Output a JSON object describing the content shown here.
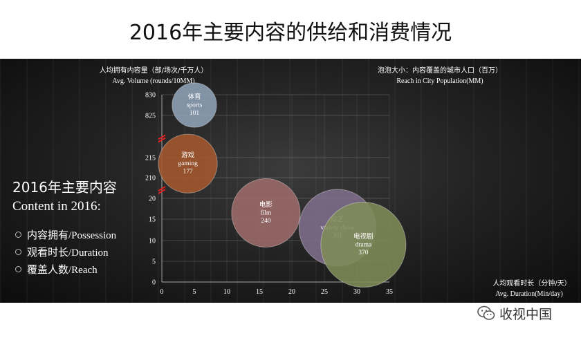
{
  "slide": {
    "title": "2016年主要内容的供给和消费情况",
    "side_title_cn": "2016年主要内容",
    "side_title_en": "Content in 2016:",
    "side_items": [
      "内容拥有/Possession",
      "观看时长/Duration",
      "覆盖人数/Reach"
    ],
    "footer_text": "收视中国",
    "footer_icon": "wechat-icon"
  },
  "chart_data": {
    "type": "bubble",
    "ylabel_cn": "人均拥有内容量（部/场次/千万人）",
    "ylabel_en": "Avg. Volume (rounds/10MM)",
    "xlabel_cn": "人均观看时长（分钟/天）",
    "xlabel_en": "Avg. Duration(Min/day)",
    "size_label_cn": "泡泡大小：内容覆盖的城市人口（百万）",
    "size_label_en": "Reach in City Population(MM)",
    "xlim": [
      0,
      35
    ],
    "x_ticks": [
      0,
      5,
      10,
      15,
      20,
      25,
      30,
      35
    ],
    "y_ticks": [
      0,
      5,
      10,
      15,
      20,
      210,
      215,
      825,
      830
    ],
    "y_axis_breaks": true,
    "points": [
      {
        "label_cn": "体育",
        "label_en": "sports",
        "x": 5,
        "y": 827.5,
        "reach": 101,
        "color": "#8fa3b8"
      },
      {
        "label_cn": "游戏",
        "label_en": "gaming",
        "x": 4,
        "y": 213.5,
        "reach": 177,
        "color": "#a4582c"
      },
      {
        "label_cn": "电影",
        "label_en": "film",
        "x": 16,
        "y": 16.5,
        "reach": 240,
        "color": "#9e6b6b"
      },
      {
        "label_cn": "综艺",
        "label_en": "variety show",
        "x": 27,
        "y": 13,
        "reach": 301,
        "color": "#7f6e8c"
      },
      {
        "label_cn": "电视剧",
        "label_en": "drama",
        "x": 31,
        "y": 9,
        "reach": 370,
        "color": "#7f8c58"
      }
    ]
  }
}
